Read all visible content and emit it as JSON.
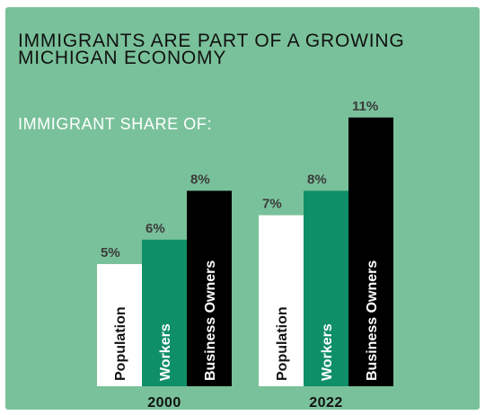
{
  "header": {
    "title_line1": "IMMIGRANTS ARE PART OF A GROWING",
    "title_line2": "MICHIGAN ECONOMY",
    "subtitle": "IMMIGRANT SHARE OF:"
  },
  "colors": {
    "background": "#79c19a",
    "Population": "#ffffff",
    "Workers": "#0f8f67",
    "Business Owners": "#000000"
  },
  "chart_data": {
    "type": "bar",
    "title": "IMMIGRANTS ARE PART OF A GROWING MICHIGAN ECONOMY",
    "subtitle": "IMMIGRANT SHARE OF:",
    "categories": [
      "2000",
      "2022"
    ],
    "series": [
      {
        "name": "Population",
        "values": [
          5,
          7
        ],
        "labels": [
          "5%",
          "7%"
        ]
      },
      {
        "name": "Workers",
        "values": [
          6,
          8
        ],
        "labels": [
          "6%",
          "8%"
        ]
      },
      {
        "name": "Business Owners",
        "values": [
          8,
          11
        ],
        "labels": [
          "8%",
          "11%"
        ]
      }
    ],
    "ylim": [
      0,
      11
    ],
    "grid": false,
    "legend": "none"
  }
}
